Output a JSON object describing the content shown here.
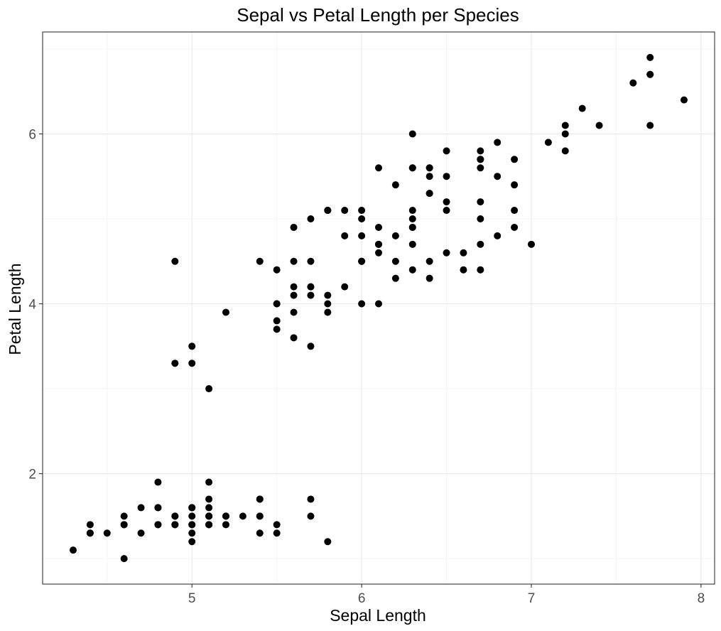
{
  "chart_data": {
    "type": "scatter",
    "title": "Sepal vs Petal Length per Species",
    "xlabel": "Sepal Length",
    "ylabel": "Petal Length",
    "xlim": [
      4.12,
      8.08
    ],
    "ylim": [
      0.7,
      7.2
    ],
    "xticks": [
      5,
      6,
      7,
      8
    ],
    "xtick_labels": [
      "5",
      "6",
      "7",
      "8"
    ],
    "yticks": [
      2,
      4,
      6
    ],
    "ytick_labels": [
      "2",
      "4",
      "6"
    ],
    "x_minor": [
      4.5,
      5.5,
      6.5,
      7.5
    ],
    "y_minor": [
      1,
      3,
      5,
      7
    ],
    "grid": true,
    "point_color": "#000000",
    "points": [
      [
        5.1,
        1.4
      ],
      [
        4.9,
        1.4
      ],
      [
        4.7,
        1.3
      ],
      [
        4.6,
        1.5
      ],
      [
        5.0,
        1.4
      ],
      [
        5.4,
        1.7
      ],
      [
        4.6,
        1.4
      ],
      [
        5.0,
        1.5
      ],
      [
        4.4,
        1.4
      ],
      [
        4.9,
        1.5
      ],
      [
        5.4,
        1.5
      ],
      [
        4.8,
        1.6
      ],
      [
        4.8,
        1.4
      ],
      [
        4.3,
        1.1
      ],
      [
        5.8,
        1.2
      ],
      [
        5.7,
        1.5
      ],
      [
        5.4,
        1.3
      ],
      [
        5.1,
        1.4
      ],
      [
        5.7,
        1.7
      ],
      [
        5.1,
        1.5
      ],
      [
        5.4,
        1.7
      ],
      [
        5.1,
        1.5
      ],
      [
        4.6,
        1.0
      ],
      [
        5.1,
        1.7
      ],
      [
        4.8,
        1.9
      ],
      [
        5.0,
        1.6
      ],
      [
        5.0,
        1.6
      ],
      [
        5.2,
        1.5
      ],
      [
        5.2,
        1.4
      ],
      [
        4.7,
        1.6
      ],
      [
        4.8,
        1.6
      ],
      [
        5.4,
        1.5
      ],
      [
        5.2,
        1.5
      ],
      [
        5.5,
        1.4
      ],
      [
        4.9,
        1.5
      ],
      [
        5.0,
        1.2
      ],
      [
        5.5,
        1.3
      ],
      [
        4.9,
        1.4
      ],
      [
        4.4,
        1.3
      ],
      [
        5.1,
        1.5
      ],
      [
        5.0,
        1.3
      ],
      [
        4.5,
        1.3
      ],
      [
        4.4,
        1.3
      ],
      [
        5.0,
        1.6
      ],
      [
        5.1,
        1.9
      ],
      [
        4.8,
        1.4
      ],
      [
        5.1,
        1.6
      ],
      [
        4.6,
        1.4
      ],
      [
        5.3,
        1.5
      ],
      [
        5.0,
        1.4
      ],
      [
        7.0,
        4.7
      ],
      [
        6.4,
        4.5
      ],
      [
        6.9,
        4.9
      ],
      [
        5.5,
        4.0
      ],
      [
        6.5,
        4.6
      ],
      [
        5.7,
        4.5
      ],
      [
        6.3,
        4.7
      ],
      [
        4.9,
        3.3
      ],
      [
        6.6,
        4.6
      ],
      [
        5.2,
        3.9
      ],
      [
        5.0,
        3.5
      ],
      [
        5.9,
        4.2
      ],
      [
        6.0,
        4.0
      ],
      [
        6.1,
        4.7
      ],
      [
        5.6,
        3.6
      ],
      [
        6.7,
        4.4
      ],
      [
        5.6,
        4.5
      ],
      [
        5.8,
        4.1
      ],
      [
        6.2,
        4.5
      ],
      [
        5.6,
        3.9
      ],
      [
        5.9,
        4.8
      ],
      [
        6.1,
        4.0
      ],
      [
        6.3,
        4.9
      ],
      [
        6.1,
        4.7
      ],
      [
        6.4,
        4.3
      ],
      [
        6.6,
        4.4
      ],
      [
        6.8,
        4.8
      ],
      [
        6.7,
        5.0
      ],
      [
        6.0,
        4.5
      ],
      [
        5.7,
        3.5
      ],
      [
        5.5,
        3.8
      ],
      [
        5.5,
        3.7
      ],
      [
        5.8,
        3.9
      ],
      [
        6.0,
        5.1
      ],
      [
        5.4,
        4.5
      ],
      [
        6.0,
        4.5
      ],
      [
        6.7,
        4.7
      ],
      [
        6.3,
        4.4
      ],
      [
        5.6,
        4.1
      ],
      [
        5.5,
        4.0
      ],
      [
        5.5,
        4.4
      ],
      [
        6.1,
        4.6
      ],
      [
        5.8,
        4.0
      ],
      [
        5.0,
        3.3
      ],
      [
        5.6,
        4.2
      ],
      [
        5.7,
        4.2
      ],
      [
        5.7,
        4.2
      ],
      [
        6.2,
        4.3
      ],
      [
        5.1,
        3.0
      ],
      [
        5.7,
        4.1
      ],
      [
        6.3,
        6.0
      ],
      [
        5.8,
        5.1
      ],
      [
        7.1,
        5.9
      ],
      [
        6.3,
        5.6
      ],
      [
        6.5,
        5.8
      ],
      [
        7.6,
        6.6
      ],
      [
        4.9,
        4.5
      ],
      [
        7.3,
        6.3
      ],
      [
        6.7,
        5.8
      ],
      [
        7.2,
        6.1
      ],
      [
        6.5,
        5.1
      ],
      [
        6.4,
        5.3
      ],
      [
        6.8,
        5.5
      ],
      [
        5.7,
        5.0
      ],
      [
        5.8,
        5.1
      ],
      [
        6.4,
        5.3
      ],
      [
        6.5,
        5.5
      ],
      [
        7.7,
        6.7
      ],
      [
        7.7,
        6.9
      ],
      [
        6.0,
        5.0
      ],
      [
        6.9,
        5.7
      ],
      [
        5.6,
        4.9
      ],
      [
        7.7,
        6.7
      ],
      [
        6.3,
        4.9
      ],
      [
        6.7,
        5.7
      ],
      [
        7.2,
        6.0
      ],
      [
        6.2,
        4.8
      ],
      [
        6.1,
        4.9
      ],
      [
        6.4,
        5.6
      ],
      [
        7.2,
        5.8
      ],
      [
        7.4,
        6.1
      ],
      [
        7.9,
        6.4
      ],
      [
        6.4,
        5.6
      ],
      [
        6.3,
        5.1
      ],
      [
        6.1,
        5.6
      ],
      [
        7.7,
        6.1
      ],
      [
        6.3,
        5.6
      ],
      [
        6.4,
        5.5
      ],
      [
        6.0,
        4.8
      ],
      [
        6.9,
        5.4
      ],
      [
        6.7,
        5.6
      ],
      [
        6.9,
        5.1
      ],
      [
        5.8,
        5.1
      ],
      [
        6.8,
        5.9
      ],
      [
        6.7,
        5.7
      ],
      [
        6.7,
        5.2
      ],
      [
        6.3,
        5.0
      ],
      [
        6.5,
        5.2
      ],
      [
        6.2,
        5.4
      ],
      [
        5.9,
        5.1
      ]
    ]
  }
}
